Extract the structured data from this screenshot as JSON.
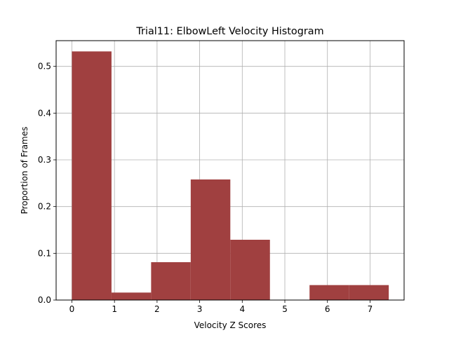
{
  "chart_data": {
    "type": "bar",
    "title": "Trial11: ElbowLeft Velocity Histogram",
    "xlabel": "Velocity Z Scores",
    "ylabel": "Proportion of Frames",
    "xlim": [
      -0.37,
      7.8
    ],
    "ylim": [
      0,
      0.555
    ],
    "grid": true,
    "bar_color": "#a04040",
    "xticks": [
      0,
      1,
      2,
      3,
      4,
      5,
      6,
      7
    ],
    "xtick_labels": [
      "0",
      "1",
      "2",
      "3",
      "4",
      "5",
      "6",
      "7"
    ],
    "yticks": [
      0.0,
      0.1,
      0.2,
      0.3,
      0.4,
      0.5
    ],
    "ytick_labels": [
      "0.0",
      "0.1",
      "0.2",
      "0.3",
      "0.4",
      "0.5"
    ],
    "bins": [
      {
        "start": 0.0,
        "end": 0.93,
        "value": 0.532
      },
      {
        "start": 0.93,
        "end": 1.86,
        "value": 0.016
      },
      {
        "start": 1.86,
        "end": 2.79,
        "value": 0.081
      },
      {
        "start": 2.79,
        "end": 3.72,
        "value": 0.258
      },
      {
        "start": 3.72,
        "end": 4.65,
        "value": 0.129
      },
      {
        "start": 4.65,
        "end": 5.58,
        "value": 0.0
      },
      {
        "start": 5.58,
        "end": 6.51,
        "value": 0.032
      },
      {
        "start": 6.51,
        "end": 7.44,
        "value": 0.032
      }
    ]
  }
}
